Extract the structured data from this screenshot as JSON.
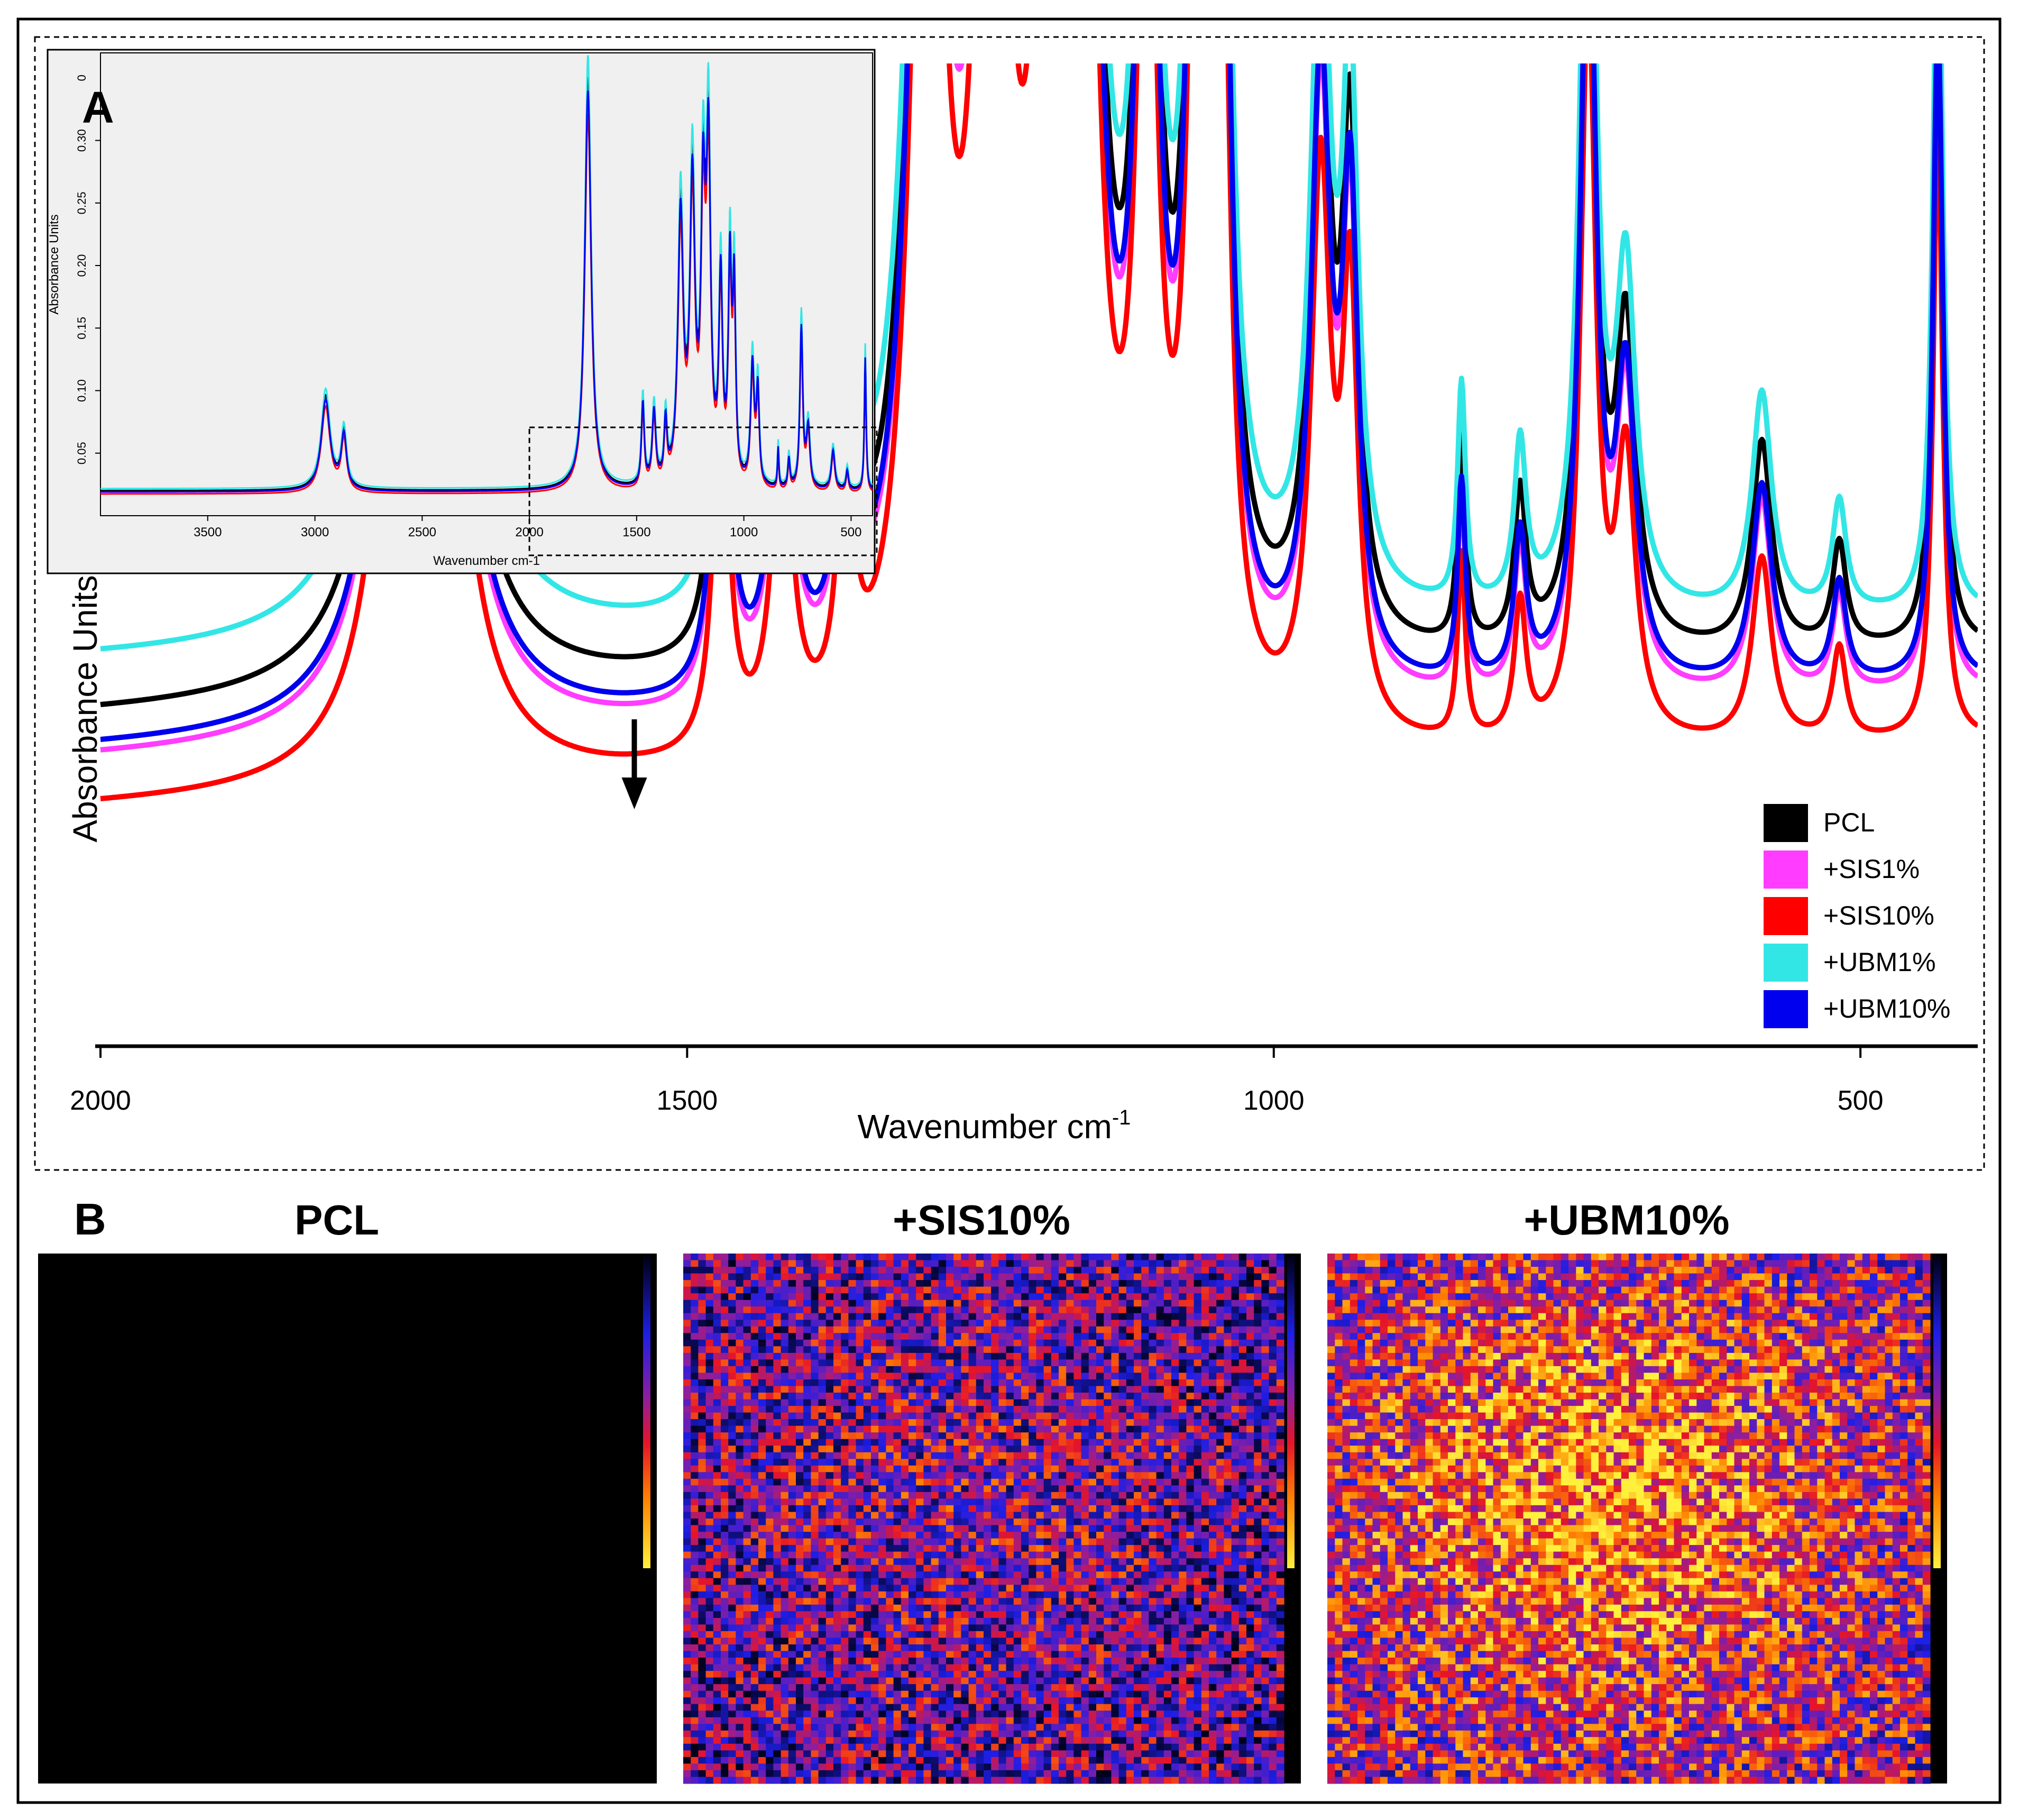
{
  "panel_a": {
    "label": "A",
    "ylabel": "Absorbance Units",
    "xlabel": "Wavenumber cm",
    "xlabel_sup": "-1",
    "arrow_at": 1545
  },
  "panel_b": {
    "label": "B",
    "maps": [
      {
        "title": "PCL",
        "intensity": 0.0
      },
      {
        "title": "+SIS10%",
        "intensity": 0.45
      },
      {
        "title": "+UBM10%",
        "intensity": 0.62
      }
    ]
  },
  "colors": {
    "PCL": "#000000",
    "+SIS1%": "#ff3cff",
    "+SIS10%": "#ff0000",
    "+UBM1%": "#33e6e6",
    "+UBM10%": "#0000ee"
  },
  "chart_data": [
    {
      "type": "line",
      "title": "",
      "xlabel": "Wavenumber cm-1",
      "ylabel": "Absorbance Units",
      "xlim": [
        2000,
        400
      ],
      "x_reversed": true,
      "xticks": [
        2000,
        1500,
        1000,
        500
      ],
      "ylim": [
        -0.3,
        1.0
      ],
      "legend": {
        "placement": "bottom-right",
        "entries": [
          "PCL",
          "+SIS1%",
          "+SIS10%",
          "+UBM1%",
          "+UBM10%"
        ]
      },
      "series": [
        {
          "name": "PCL",
          "offset": 0.0,
          "baseline": 0.12,
          "slope": 6e-05
        },
        {
          "name": "+SIS1%",
          "offset": -0.065,
          "baseline": 0.12,
          "slope": 6e-05
        },
        {
          "name": "+SIS10%",
          "offset": -0.135,
          "baseline": 0.12,
          "slope": 6e-05
        },
        {
          "name": "+UBM1%",
          "offset": 0.08,
          "baseline": 0.12,
          "slope": 4e-05
        },
        {
          "name": "+UBM10%",
          "offset": -0.05,
          "baseline": 0.12,
          "slope": 6e-05
        }
      ],
      "peaks": [
        {
          "x": 1727,
          "height": 3.0,
          "width": 18
        },
        {
          "x": 1471,
          "height": 0.62,
          "width": 8
        },
        {
          "x": 1419,
          "height": 0.55,
          "width": 10
        },
        {
          "x": 1365,
          "height": 0.45,
          "width": 8
        },
        {
          "x": 1295,
          "height": 2.0,
          "width": 15
        },
        {
          "x": 1240,
          "height": 2.2,
          "width": 14
        },
        {
          "x": 1190,
          "height": 2.0,
          "width": 12
        },
        {
          "x": 1165,
          "height": 2.4,
          "width": 12
        },
        {
          "x": 1108,
          "height": 1.5,
          "width": 10
        },
        {
          "x": 1065,
          "height": 1.6,
          "width": 9
        },
        {
          "x": 1045,
          "height": 1.4,
          "width": 8
        },
        {
          "x": 960,
          "height": 0.9,
          "width": 10
        },
        {
          "x": 935,
          "height": 0.7,
          "width": 8
        },
        {
          "x": 840,
          "height": 0.3,
          "width": 4
        },
        {
          "x": 790,
          "height": 0.22,
          "width": 6
        },
        {
          "x": 732,
          "height": 1.2,
          "width": 8
        },
        {
          "x": 700,
          "height": 0.45,
          "width": 10
        },
        {
          "x": 584,
          "height": 0.3,
          "width": 10
        },
        {
          "x": 518,
          "height": 0.15,
          "width": 7
        },
        {
          "x": 434,
          "height": 1.0,
          "width": 5
        }
      ]
    },
    {
      "type": "line",
      "title": "",
      "xlabel": "Wavenumber cm-1",
      "ylabel": "Absorbance Units",
      "xlim": [
        4000,
        400
      ],
      "x_reversed": true,
      "xticks": [
        3500,
        3000,
        2500,
        2000,
        1500,
        1000,
        500
      ],
      "ylim": [
        0.0,
        0.37
      ],
      "yticks": [
        0.05,
        0.1,
        0.15,
        0.2,
        0.25,
        0.3
      ],
      "ytick_top_label": "0",
      "grid": false,
      "series_order": [
        "PCL",
        "+SIS1%",
        "+SIS10%",
        "+UBM1%",
        "+UBM10%"
      ],
      "zoom_box_x": [
        2000,
        400
      ]
    }
  ]
}
